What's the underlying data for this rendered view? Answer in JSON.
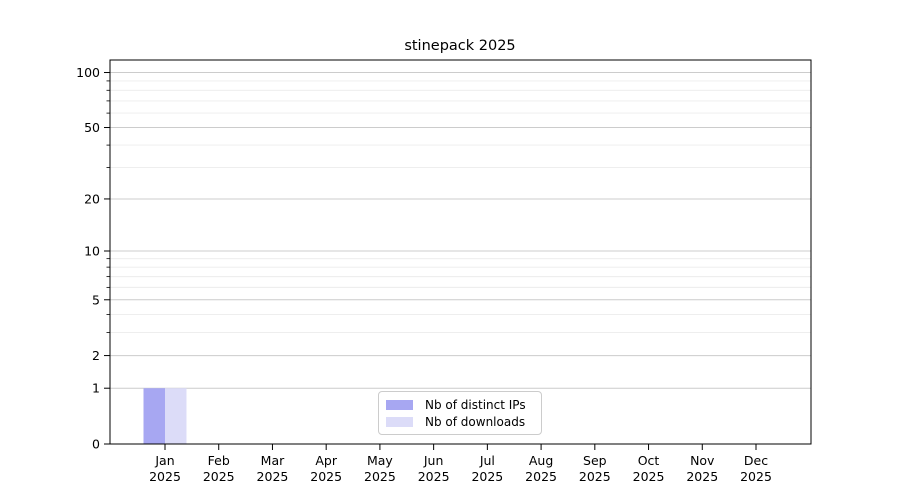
{
  "chart_data": {
    "type": "bar",
    "title": "stinepack 2025",
    "categories": [
      "Jan\n2025",
      "Feb\n2025",
      "Mar\n2025",
      "Apr\n2025",
      "May\n2025",
      "Jun\n2025",
      "Jul\n2025",
      "Aug\n2025",
      "Sep\n2025",
      "Oct\n2025",
      "Nov\n2025",
      "Dec\n2025"
    ],
    "series": [
      {
        "name": "Nb of distinct IPs",
        "color": "#a7a7f2",
        "values": [
          1,
          0,
          0,
          0,
          0,
          0,
          0,
          0,
          0,
          0,
          0,
          0
        ]
      },
      {
        "name": "Nb of downloads",
        "color": "#dcdcf8",
        "values": [
          1,
          0,
          0,
          0,
          0,
          0,
          0,
          0,
          0,
          0,
          0,
          0
        ]
      }
    ],
    "yscale": "log1p",
    "ylim": [
      0,
      117
    ],
    "yticks": [
      0,
      1,
      2,
      5,
      10,
      20,
      50,
      100
    ],
    "yticks_minor": [
      3,
      4,
      6,
      7,
      8,
      9,
      30,
      40,
      60,
      70,
      80,
      90
    ],
    "grid": {
      "major_color": "#cccccc",
      "minor_color": "#ececec"
    },
    "axis_color": "#000000",
    "legend_position": "lower center"
  }
}
